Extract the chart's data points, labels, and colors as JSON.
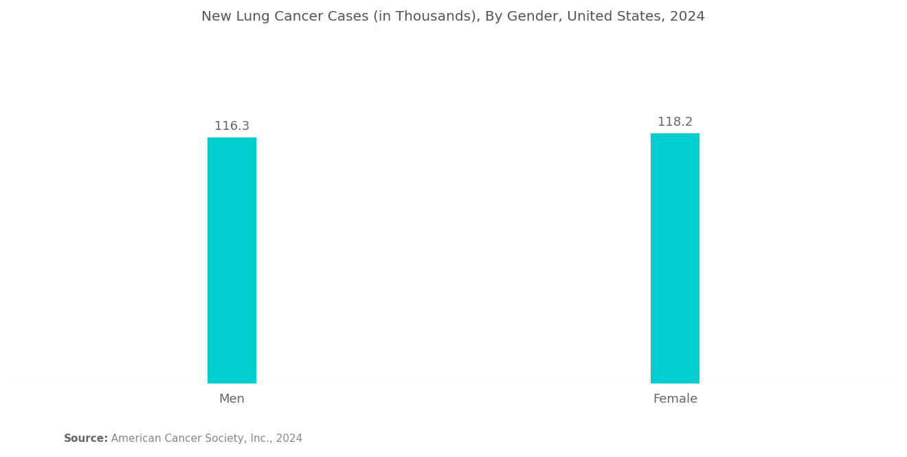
{
  "title": "New Lung Cancer Cases (in Thousands), By Gender, United States, 2024",
  "categories": [
    "Men",
    "Female"
  ],
  "values": [
    116.3,
    118.2
  ],
  "bar_color": "#00CED1",
  "background_color": "#ffffff",
  "title_fontsize": 14.5,
  "label_fontsize": 13,
  "value_fontsize": 13,
  "source_bold": "Source:",
  "source_text": "  American Cancer Society, Inc., 2024",
  "source_fontsize": 11,
  "ylim": [
    0,
    160
  ],
  "bar_width": 0.22,
  "positions": [
    1,
    3
  ],
  "xlim": [
    0,
    4
  ]
}
